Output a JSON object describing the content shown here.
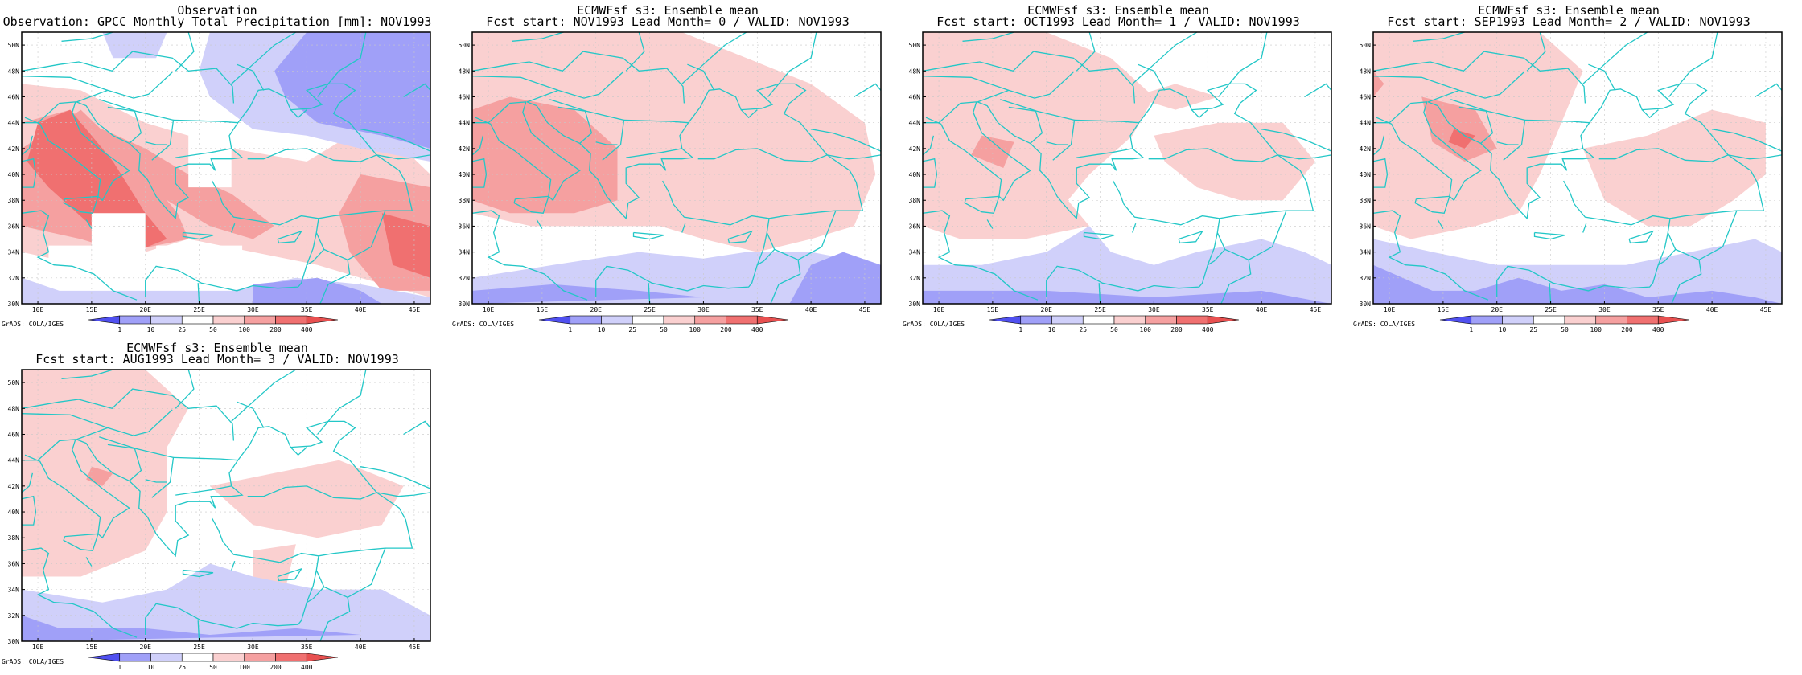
{
  "panels": [
    {
      "title1": "Observation",
      "title2": "Observation: GPCC Monthly Total Precipitation [mm]: NOV1993",
      "variant": 0
    },
    {
      "title1": "ECMWFsf s3: Ensemble mean",
      "title2": "Fcst start: NOV1993  Lead Month= 0 / VALID: NOV1993",
      "variant": 1
    },
    {
      "title1": "ECMWFsf s3: Ensemble mean",
      "title2": "Fcst start: OCT1993  Lead Month= 1 / VALID: NOV1993",
      "variant": 2
    },
    {
      "title1": "ECMWFsf s3: Ensemble mean",
      "title2": "Fcst start: SEP1993  Lead Month= 2 / VALID: NOV1993",
      "variant": 3
    },
    {
      "title1": "ECMWFsf s3: Ensemble mean",
      "title2": "Fcst start: AUG1993  Lead Month= 3 / VALID: NOV1993",
      "variant": 4
    }
  ],
  "lat_labels": [
    "50N",
    "48N",
    "46N",
    "44N",
    "42N",
    "40N",
    "38N",
    "36N",
    "34N",
    "32N",
    "30N"
  ],
  "lon_labels": [
    "10E",
    "15E",
    "20E",
    "25E",
    "30E",
    "35E",
    "40E",
    "45E"
  ],
  "colorbar_labels": [
    "1",
    "10",
    "25",
    "50",
    "100",
    "200",
    "400"
  ],
  "colorbar_colors": [
    "#5050f0",
    "#a0a0f8",
    "#d0d0fa",
    "#ffffff",
    "#fad0d0",
    "#f5a0a0",
    "#f07070",
    "#e85050"
  ],
  "credit": "GrADS: COLA/IGES",
  "colors": {
    "coast": "#23c7c7",
    "frame": "#000000"
  }
}
